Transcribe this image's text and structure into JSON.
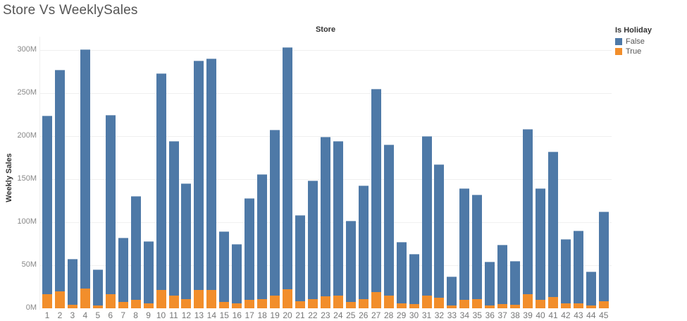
{
  "title": "Store Vs WeeklySales",
  "column_header": "Store",
  "legend": {
    "title": "Is Holiday",
    "items": [
      {
        "label": "False",
        "color": "#4e79a7"
      },
      {
        "label": "True",
        "color": "#f28e2b"
      }
    ]
  },
  "y_axis": {
    "label": "Weekly Sales",
    "ticks": [
      "0M",
      "50M",
      "100M",
      "150M",
      "200M",
      "250M",
      "300M"
    ]
  },
  "chart_data": {
    "type": "bar",
    "stacked": true,
    "title": "Store Vs WeeklySales",
    "column_header": "Store",
    "xlabel": "Store",
    "ylabel": "Weekly Sales",
    "ylim": [
      0,
      310
    ],
    "y_units": "M",
    "y_ticks": [
      0,
      50,
      100,
      150,
      200,
      250,
      300
    ],
    "grid": true,
    "legend_position": "top-right",
    "legend_title": "Is Holiday",
    "categories": [
      "1",
      "2",
      "3",
      "4",
      "5",
      "6",
      "7",
      "8",
      "9",
      "10",
      "11",
      "12",
      "13",
      "14",
      "15",
      "16",
      "17",
      "18",
      "19",
      "20",
      "21",
      "22",
      "23",
      "24",
      "25",
      "26",
      "27",
      "28",
      "29",
      "30",
      "31",
      "32",
      "33",
      "34",
      "35",
      "36",
      "37",
      "38",
      "39",
      "40",
      "41",
      "42",
      "43",
      "44",
      "45"
    ],
    "totals": [
      224,
      277,
      57,
      301,
      45,
      225,
      82,
      130,
      78,
      273,
      194,
      145,
      288,
      290,
      89,
      75,
      128,
      156,
      207,
      303,
      108,
      148,
      199,
      194,
      102,
      143,
      255,
      190,
      77,
      63,
      200,
      167,
      37,
      139,
      132,
      54,
      74,
      55,
      208,
      139,
      182,
      80,
      90,
      43,
      112
    ],
    "series": [
      {
        "name": "False",
        "color": "#4e79a7",
        "values": [
          208,
          257,
          53,
          278,
          42,
          209,
          75,
          120,
          72,
          252,
          179,
          134,
          267,
          269,
          82,
          69,
          118,
          145,
          192,
          281,
          100,
          137,
          185,
          179,
          95,
          132,
          236,
          175,
          71,
          58,
          185,
          155,
          34,
          129,
          121,
          51,
          69,
          51,
          192,
          129,
          169,
          74,
          84,
          40,
          104
        ]
      },
      {
        "name": "True",
        "color": "#f28e2b",
        "values": [
          16,
          20,
          4,
          23,
          3,
          16,
          7,
          10,
          6,
          21,
          15,
          11,
          21,
          21,
          7,
          6,
          10,
          11,
          15,
          22,
          8,
          11,
          14,
          15,
          7,
          11,
          19,
          15,
          6,
          5,
          15,
          12,
          3,
          10,
          11,
          3,
          5,
          4,
          16,
          10,
          13,
          6,
          6,
          3,
          8
        ]
      }
    ]
  }
}
